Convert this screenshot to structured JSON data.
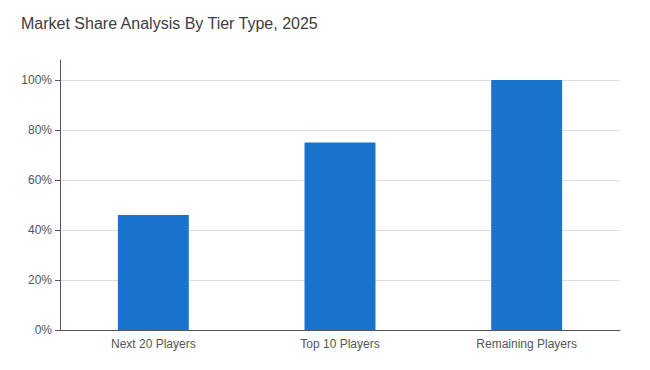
{
  "chart_data": {
    "type": "bar",
    "title": "Market Share Analysis By Tier Type, 2025",
    "categories": [
      "Next 20 Players",
      "Top 10 Players",
      "Remaining Players"
    ],
    "values": [
      46,
      75,
      100
    ],
    "color": "#1874CD",
    "ylim": [
      0,
      108
    ],
    "yticks": [
      {
        "value": 0,
        "label": "0%"
      },
      {
        "value": 20,
        "label": "20%"
      },
      {
        "value": 40,
        "label": "40%"
      },
      {
        "value": 60,
        "label": "60%"
      },
      {
        "value": 80,
        "label": "80%"
      },
      {
        "value": 100,
        "label": "100%"
      }
    ],
    "grid": true
  }
}
